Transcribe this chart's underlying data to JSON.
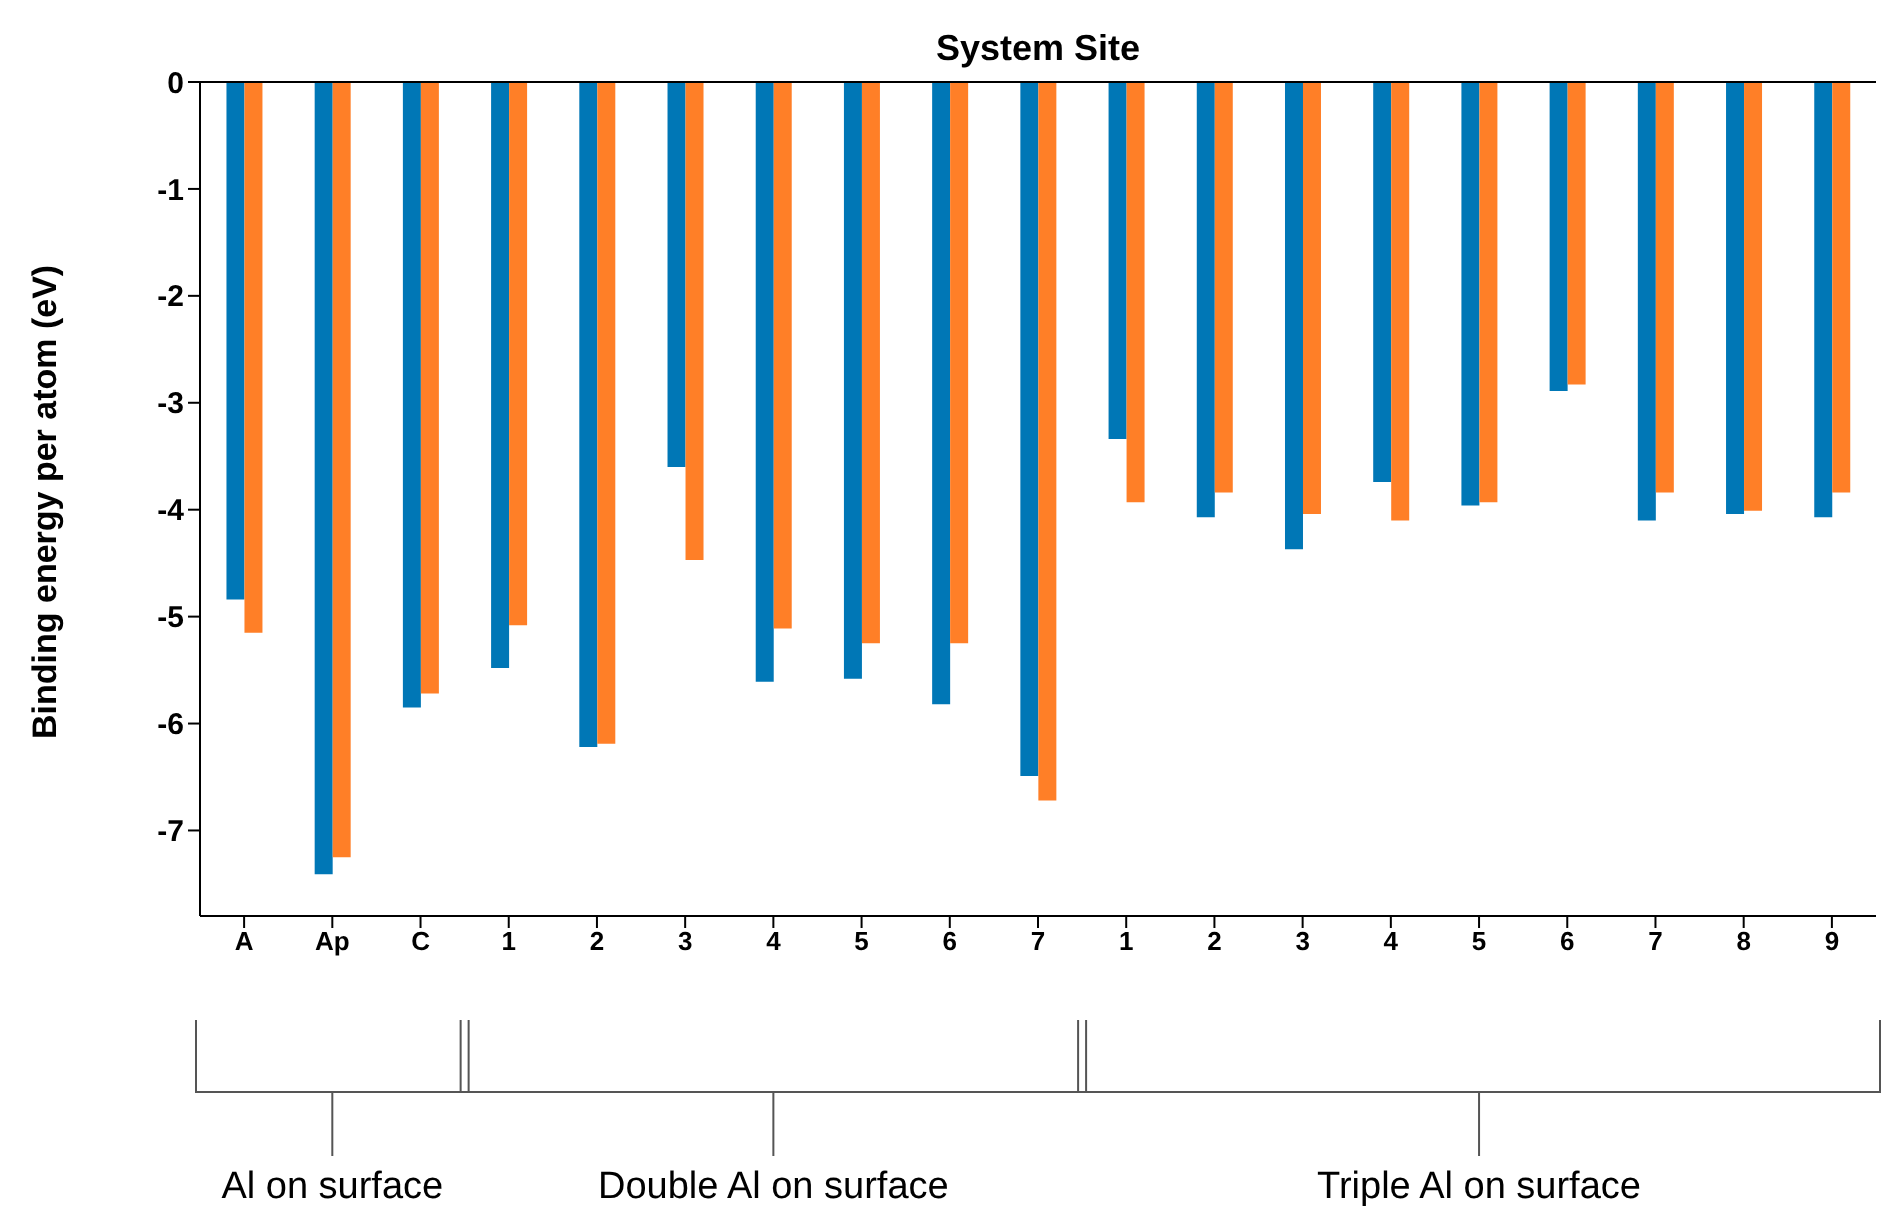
{
  "chart_data": {
    "type": "bar",
    "title": "System Site",
    "ylabel": "Binding energy per atom (eV)",
    "categories": [
      "A",
      "Ap",
      "C",
      "1",
      "2",
      "3",
      "4",
      "5",
      "6",
      "7",
      "1",
      "2",
      "3",
      "4",
      "5",
      "6",
      "7",
      "8",
      "9"
    ],
    "series": [
      {
        "color": "#0077b6",
        "values": [
          -4.84,
          -7.41,
          -5.85,
          -5.48,
          -6.22,
          -3.6,
          -5.61,
          -5.58,
          -5.82,
          -6.49,
          -3.34,
          -4.07,
          -4.37,
          -3.74,
          -3.96,
          -2.89,
          -4.1,
          -4.04,
          -4.07
        ]
      },
      {
        "color": "#ff7f27",
        "values": [
          -5.15,
          -7.25,
          -5.72,
          -5.08,
          -6.19,
          -4.47,
          -5.11,
          -5.25,
          -5.25,
          -6.72,
          -3.93,
          -3.84,
          -4.04,
          -4.1,
          -3.93,
          -2.83,
          -3.84,
          -4.01,
          -3.84
        ]
      }
    ],
    "ylim": [
      -7.8,
      0
    ],
    "yticks": [
      0,
      -1,
      -2,
      -3,
      -4,
      -5,
      -6,
      -7
    ],
    "annotations": [
      "Al on surface",
      "Double Al on surface",
      "Triple Al on surface"
    ],
    "grid": false,
    "legend": false
  }
}
